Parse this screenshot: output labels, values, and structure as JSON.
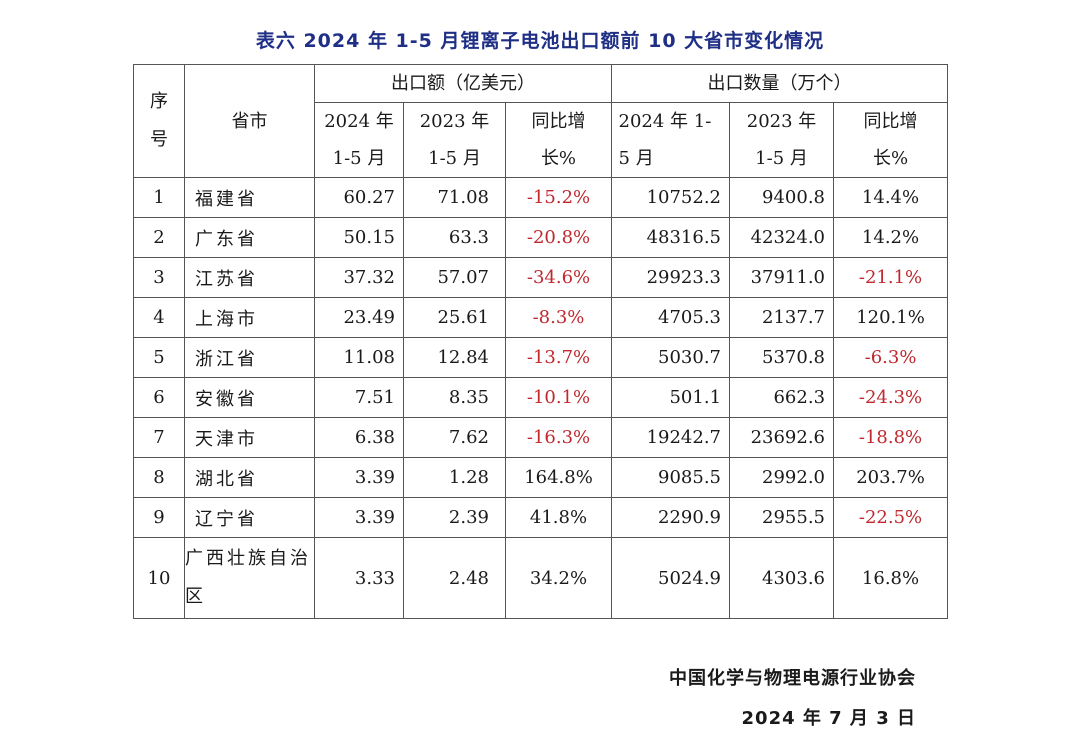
{
  "title": "表六  2024 年 1-5 月锂离子电池出口额前 10 大省市变化情况",
  "headers": {
    "seq": "序号",
    "province": "省市",
    "export_value": "出口额（亿美元）",
    "export_qty": "出口数量（万个）",
    "v2024": "2024 年 1-5 月",
    "v2023": "2023 年 1-5 月",
    "vyoy": "同比增长%",
    "q2024": "2024 年 1-5 月",
    "q2023": "2023 年 1-5 月",
    "qyoy": "同比增长%"
  },
  "rows": [
    {
      "seq": "1",
      "province": "福建省",
      "v2024": "60.27",
      "v2023": "71.08",
      "vyoy": "-15.2%",
      "q2024": "10752.2",
      "q2023": "9400.8",
      "qyoy": "14.4%"
    },
    {
      "seq": "2",
      "province": "广东省",
      "v2024": "50.15",
      "v2023": "63.3",
      "vyoy": "-20.8%",
      "q2024": "48316.5",
      "q2023": "42324.0",
      "qyoy": "14.2%"
    },
    {
      "seq": "3",
      "province": "江苏省",
      "v2024": "37.32",
      "v2023": "57.07",
      "vyoy": "-34.6%",
      "q2024": "29923.3",
      "q2023": "37911.0",
      "qyoy": "-21.1%"
    },
    {
      "seq": "4",
      "province": "上海市",
      "v2024": "23.49",
      "v2023": "25.61",
      "vyoy": "-8.3%",
      "q2024": "4705.3",
      "q2023": "2137.7",
      "qyoy": "120.1%"
    },
    {
      "seq": "5",
      "province": "浙江省",
      "v2024": "11.08",
      "v2023": "12.84",
      "vyoy": "-13.7%",
      "q2024": "5030.7",
      "q2023": "5370.8",
      "qyoy": "-6.3%"
    },
    {
      "seq": "6",
      "province": "安徽省",
      "v2024": "7.51",
      "v2023": "8.35",
      "vyoy": "-10.1%",
      "q2024": "501.1",
      "q2023": "662.3",
      "qyoy": "-24.3%"
    },
    {
      "seq": "7",
      "province": "天津市",
      "v2024": "6.38",
      "v2023": "7.62",
      "vyoy": "-16.3%",
      "q2024": "19242.7",
      "q2023": "23692.6",
      "qyoy": "-18.8%"
    },
    {
      "seq": "8",
      "province": "湖北省",
      "v2024": "3.39",
      "v2023": "1.28",
      "vyoy": "164.8%",
      "q2024": "9085.5",
      "q2023": "2992.0",
      "qyoy": "203.7%"
    },
    {
      "seq": "9",
      "province": "辽宁省",
      "v2024": "3.39",
      "v2023": "2.39",
      "vyoy": "41.8%",
      "q2024": "2290.9",
      "q2023": "2955.5",
      "qyoy": "-22.5%"
    },
    {
      "seq": "10",
      "province": "广西壮族自治区",
      "v2024": "3.33",
      "v2023": "2.48",
      "vyoy": "34.2%",
      "q2024": "5024.9",
      "q2023": "4303.6",
      "qyoy": "16.8%"
    }
  ],
  "footer": {
    "org": "中国化学与物理电源行业协会",
    "date": "2024 年 7 月 3 日"
  },
  "colors": {
    "title": "#1f2f86",
    "negative": "#c0282f"
  }
}
